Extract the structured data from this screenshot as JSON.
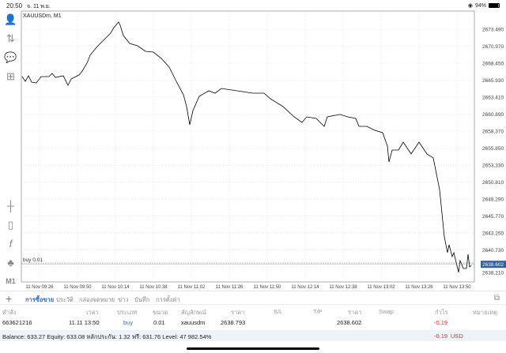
{
  "status_bar": {
    "time": "20:50",
    "date": "จ. 11 พ.ย.",
    "battery": "94%",
    "battery_level": 0.94
  },
  "chart": {
    "symbol_label": "XAUUSDm, M1",
    "position_label": "buy 0.01",
    "current_price": "2638.602",
    "colors": {
      "line": "#000000",
      "grid": "#d9d9d9",
      "bid_box": "#2f5f9e",
      "position_line": "#7aa7c7"
    }
  },
  "chart_data": {
    "type": "line",
    "title": "XAUUSDm, M1",
    "x_tick_labels": [
      "11 Nov 09:26",
      "11 Nov 09:50",
      "11 Nov 10:14",
      "11 Nov 10:38",
      "11 Nov 11:02",
      "11 Nov 11:26",
      "11 Nov 11:50",
      "11 Nov 12:14",
      "11 Nov 12:38",
      "11 Nov 13:02",
      "11 Nov 13:26",
      "11 Nov 13:50"
    ],
    "y_tick_labels": [
      "2673.490",
      "2670.970",
      "2668.450",
      "2665.930",
      "2663.410",
      "2660.890",
      "2658.370",
      "2655.850",
      "2653.330",
      "2650.810",
      "2648.290",
      "2645.770",
      "2643.250",
      "2640.730",
      "2638.210"
    ],
    "ylim": [
      2636.5,
      2676.5
    ],
    "grid": true,
    "bid": 2638.602,
    "position_price": 2638.793,
    "x": [
      "09:15",
      "09:17",
      "09:19",
      "09:21",
      "09:24",
      "09:27",
      "09:32",
      "09:34",
      "09:36",
      "09:41",
      "09:44",
      "09:46",
      "09:51",
      "09:53",
      "09:56",
      "09:58",
      "10:02",
      "10:06",
      "10:11",
      "10:13",
      "10:16",
      "10:17",
      "10:19",
      "10:23",
      "10:28",
      "10:33",
      "10:38",
      "10:43",
      "10:48",
      "10:53",
      "10:57",
      "10:59",
      "11:01",
      "11:03",
      "11:07",
      "11:13",
      "11:17",
      "11:21",
      "11:31",
      "11:41",
      "11:48",
      "11:52",
      "12:00",
      "12:07",
      "12:12",
      "12:15",
      "12:21",
      "12:26",
      "12:28",
      "12:36",
      "12:41",
      "12:46",
      "12:48",
      "12:53",
      "12:58",
      "13:03",
      "13:06",
      "13:07",
      "13:09",
      "13:13",
      "13:16",
      "13:21",
      "13:26",
      "13:31",
      "13:35",
      "13:39",
      "13:42",
      "13:44",
      "13:45",
      "13:47",
      "13:48",
      "13:51",
      "13:52",
      "13:54",
      "13:56",
      "13:57",
      "13:58",
      "13:59"
    ],
    "values": [
      2666.46,
      2665.76,
      2666.58,
      2665.64,
      2665.52,
      2666.46,
      2666.46,
      2666.93,
      2666.34,
      2666.58,
      2665.17,
      2666.11,
      2666.7,
      2667.28,
      2668.45,
      2669.63,
      2670.8,
      2671.74,
      2672.91,
      2673.73,
      2674.55,
      2674.08,
      2672.56,
      2671.38,
      2671.03,
      2670.21,
      2670.09,
      2669.16,
      2667.87,
      2665.52,
      2663.77,
      2662.01,
      2659.31,
      2661.42,
      2663.53,
      2664.35,
      2664.0,
      2664.7,
      2664.35,
      2664.0,
      2664.0,
      2663.18,
      2662.01,
      2660.48,
      2659.66,
      2660.48,
      2660.25,
      2659.08,
      2660.48,
      2660.84,
      2660.48,
      2660.25,
      2659.08,
      2659.08,
      2658.49,
      2658.14,
      2656.15,
      2653.8,
      2655.56,
      2655.56,
      2656.73,
      2654.98,
      2656.73,
      2654.98,
      2654.39,
      2649.7,
      2642.67,
      2640.33,
      2641.5,
      2639.74,
      2640.33,
      2637.4,
      2639.15,
      2637.98,
      2637.98,
      2640.09,
      2638.22,
      2638.45
    ]
  },
  "toolbar": {
    "icons": [
      "account-icon",
      "trade-icon",
      "chat-icon",
      "new-order-icon",
      "crosshair-icon",
      "candles-icon",
      "indicator-icon",
      "objects-icon"
    ],
    "timeframe": "M1"
  },
  "tabs": {
    "items": [
      "การซื้อขาย",
      "ประวัติ",
      "กล่องจดหมาย",
      "ข่าว",
      "บันทึก",
      "การตั้งค่า"
    ]
  },
  "table": {
    "headers": [
      "คำสั่ง",
      "เวลา",
      "ประเภท",
      "ขนาด",
      "สัญลักษณ์",
      "ราคา",
      "S/L",
      "T/P",
      "ราคา",
      "Swap",
      "กำไร",
      "หมายเหตุ"
    ],
    "row": {
      "order": "663621216",
      "time": "11.11 13:50",
      "type": "buy",
      "size": "0.01",
      "symbol": "xauusdm",
      "open_price": "2638.793",
      "sl": "",
      "tp": "",
      "price": "2638.602",
      "swap": "",
      "profit": "-0.19",
      "comment": ""
    }
  },
  "balance": {
    "text": "Balance: 633.27 Equity: 633.08 หลักประกัน: 1.32 ฟรี: 631.76 Level: 47 982.54%",
    "total": "-0.19",
    "currency": "USD"
  }
}
